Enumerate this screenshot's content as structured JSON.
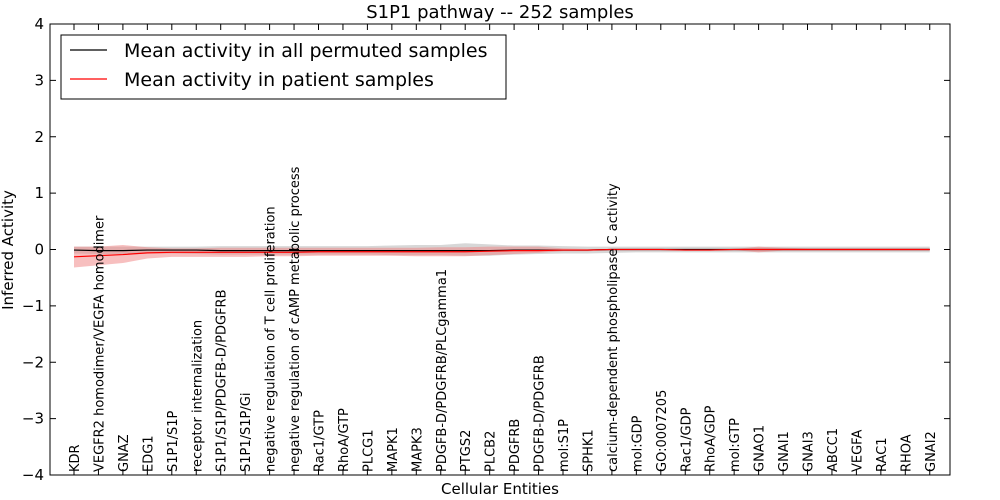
{
  "chart_data": {
    "type": "line",
    "title": "S1P1 pathway -- 252 samples",
    "xlabel": "Cellular Entities",
    "ylabel": "Inferred Activity",
    "ylim": [
      -4,
      4
    ],
    "yticks": [
      4,
      3,
      2,
      1,
      0,
      -1,
      -2,
      -3,
      -4
    ],
    "ytick_labels": [
      "4",
      "3",
      "2",
      "1",
      "0",
      "−1",
      "−2",
      "−3",
      "−4"
    ],
    "grid": false,
    "legend_position": "top-left",
    "categories": [
      "KDR",
      "VEGFR2 homodimer/VEGFA homodimer",
      "GNAZ",
      "EDG1",
      "S1P1/S1P",
      "receptor internalization",
      "S1P1/S1P/PDGFB-D/PDGFRB",
      "S1P1/S1P/Gi",
      "negative regulation of T cell proliferation",
      "negative regulation of cAMP metabolic process",
      "Rac1/GTP",
      "RhoA/GTP",
      "PLCG1",
      "MAPK1",
      "MAPK3",
      "PDGFB-D/PDGFRB/PLCgamma1",
      "PTGS2",
      "PLCB2",
      "PDGFRB",
      "PDGFB-D/PDGFRB",
      "mol:S1P",
      "SPHK1",
      "calcium-dependent phospholipase C activity",
      "mol:GDP",
      "GO:0007205",
      "Rac1/GDP",
      "RhoA/GDP",
      "mol:GTP",
      "GNAO1",
      "GNAI1",
      "GNAI3",
      "ABCC1",
      "VEGFA",
      "RAC1",
      "RHOA",
      "GNAI2"
    ],
    "series": [
      {
        "name": "Mean activity in all permuted samples",
        "color": "#000000",
        "band_color": "#b0b0b0",
        "values": [
          -0.01,
          -0.02,
          -0.02,
          -0.01,
          -0.01,
          -0.01,
          -0.02,
          -0.02,
          -0.02,
          -0.02,
          -0.02,
          -0.02,
          -0.02,
          -0.02,
          -0.02,
          -0.02,
          -0.02,
          -0.02,
          -0.01,
          -0.01,
          -0.01,
          -0.01,
          0.0,
          0.0,
          0.0,
          0.0,
          0.0,
          0.0,
          0.0,
          0.0,
          0.0,
          0.0,
          0.0,
          0.0,
          0.0,
          0.0
        ],
        "band_upper": [
          0.05,
          0.05,
          0.05,
          0.05,
          0.05,
          0.05,
          0.06,
          0.06,
          0.06,
          0.06,
          0.06,
          0.06,
          0.06,
          0.07,
          0.08,
          0.08,
          0.11,
          0.09,
          0.07,
          0.07,
          0.06,
          0.05,
          0.05,
          0.05,
          0.05,
          0.05,
          0.05,
          0.05,
          0.05,
          0.05,
          0.05,
          0.05,
          0.05,
          0.05,
          0.05,
          0.05
        ],
        "band_lower": [
          -0.07,
          -0.08,
          -0.08,
          -0.07,
          -0.07,
          -0.08,
          -0.09,
          -0.09,
          -0.09,
          -0.09,
          -0.09,
          -0.09,
          -0.09,
          -0.1,
          -0.1,
          -0.1,
          -0.11,
          -0.11,
          -0.09,
          -0.08,
          -0.07,
          -0.07,
          -0.06,
          -0.05,
          -0.05,
          -0.05,
          -0.05,
          -0.05,
          -0.05,
          -0.05,
          -0.05,
          -0.05,
          -0.05,
          -0.05,
          -0.05,
          -0.05
        ]
      },
      {
        "name": "Mean activity in patient samples",
        "color": "#ff0000",
        "band_color": "#f08080",
        "values": [
          -0.13,
          -0.11,
          -0.09,
          -0.06,
          -0.05,
          -0.05,
          -0.05,
          -0.05,
          -0.05,
          -0.05,
          -0.04,
          -0.04,
          -0.04,
          -0.04,
          -0.04,
          -0.04,
          -0.04,
          -0.03,
          -0.02,
          -0.02,
          -0.01,
          -0.01,
          0.0,
          0.0,
          0.0,
          -0.01,
          -0.01,
          0.0,
          0.0,
          0.0,
          0.0,
          0.0,
          0.0,
          0.0,
          0.0,
          0.0
        ],
        "band_upper": [
          0.05,
          0.05,
          0.08,
          0.04,
          0.02,
          0.02,
          0.03,
          0.03,
          0.03,
          0.03,
          0.03,
          0.03,
          0.03,
          0.03,
          0.03,
          0.04,
          0.04,
          0.05,
          0.05,
          0.05,
          0.02,
          0.01,
          0.01,
          0.01,
          0.01,
          0.01,
          0.01,
          0.01,
          0.05,
          0.03,
          0.02,
          0.02,
          0.02,
          0.02,
          0.02,
          0.02
        ],
        "band_lower": [
          -0.32,
          -0.28,
          -0.24,
          -0.16,
          -0.13,
          -0.13,
          -0.13,
          -0.13,
          -0.12,
          -0.12,
          -0.11,
          -0.11,
          -0.11,
          -0.11,
          -0.12,
          -0.12,
          -0.12,
          -0.1,
          -0.08,
          -0.06,
          -0.03,
          -0.03,
          -0.01,
          -0.01,
          -0.01,
          -0.02,
          -0.02,
          -0.01,
          -0.05,
          -0.02,
          -0.02,
          -0.02,
          -0.02,
          -0.02,
          -0.02,
          -0.02
        ]
      }
    ]
  }
}
